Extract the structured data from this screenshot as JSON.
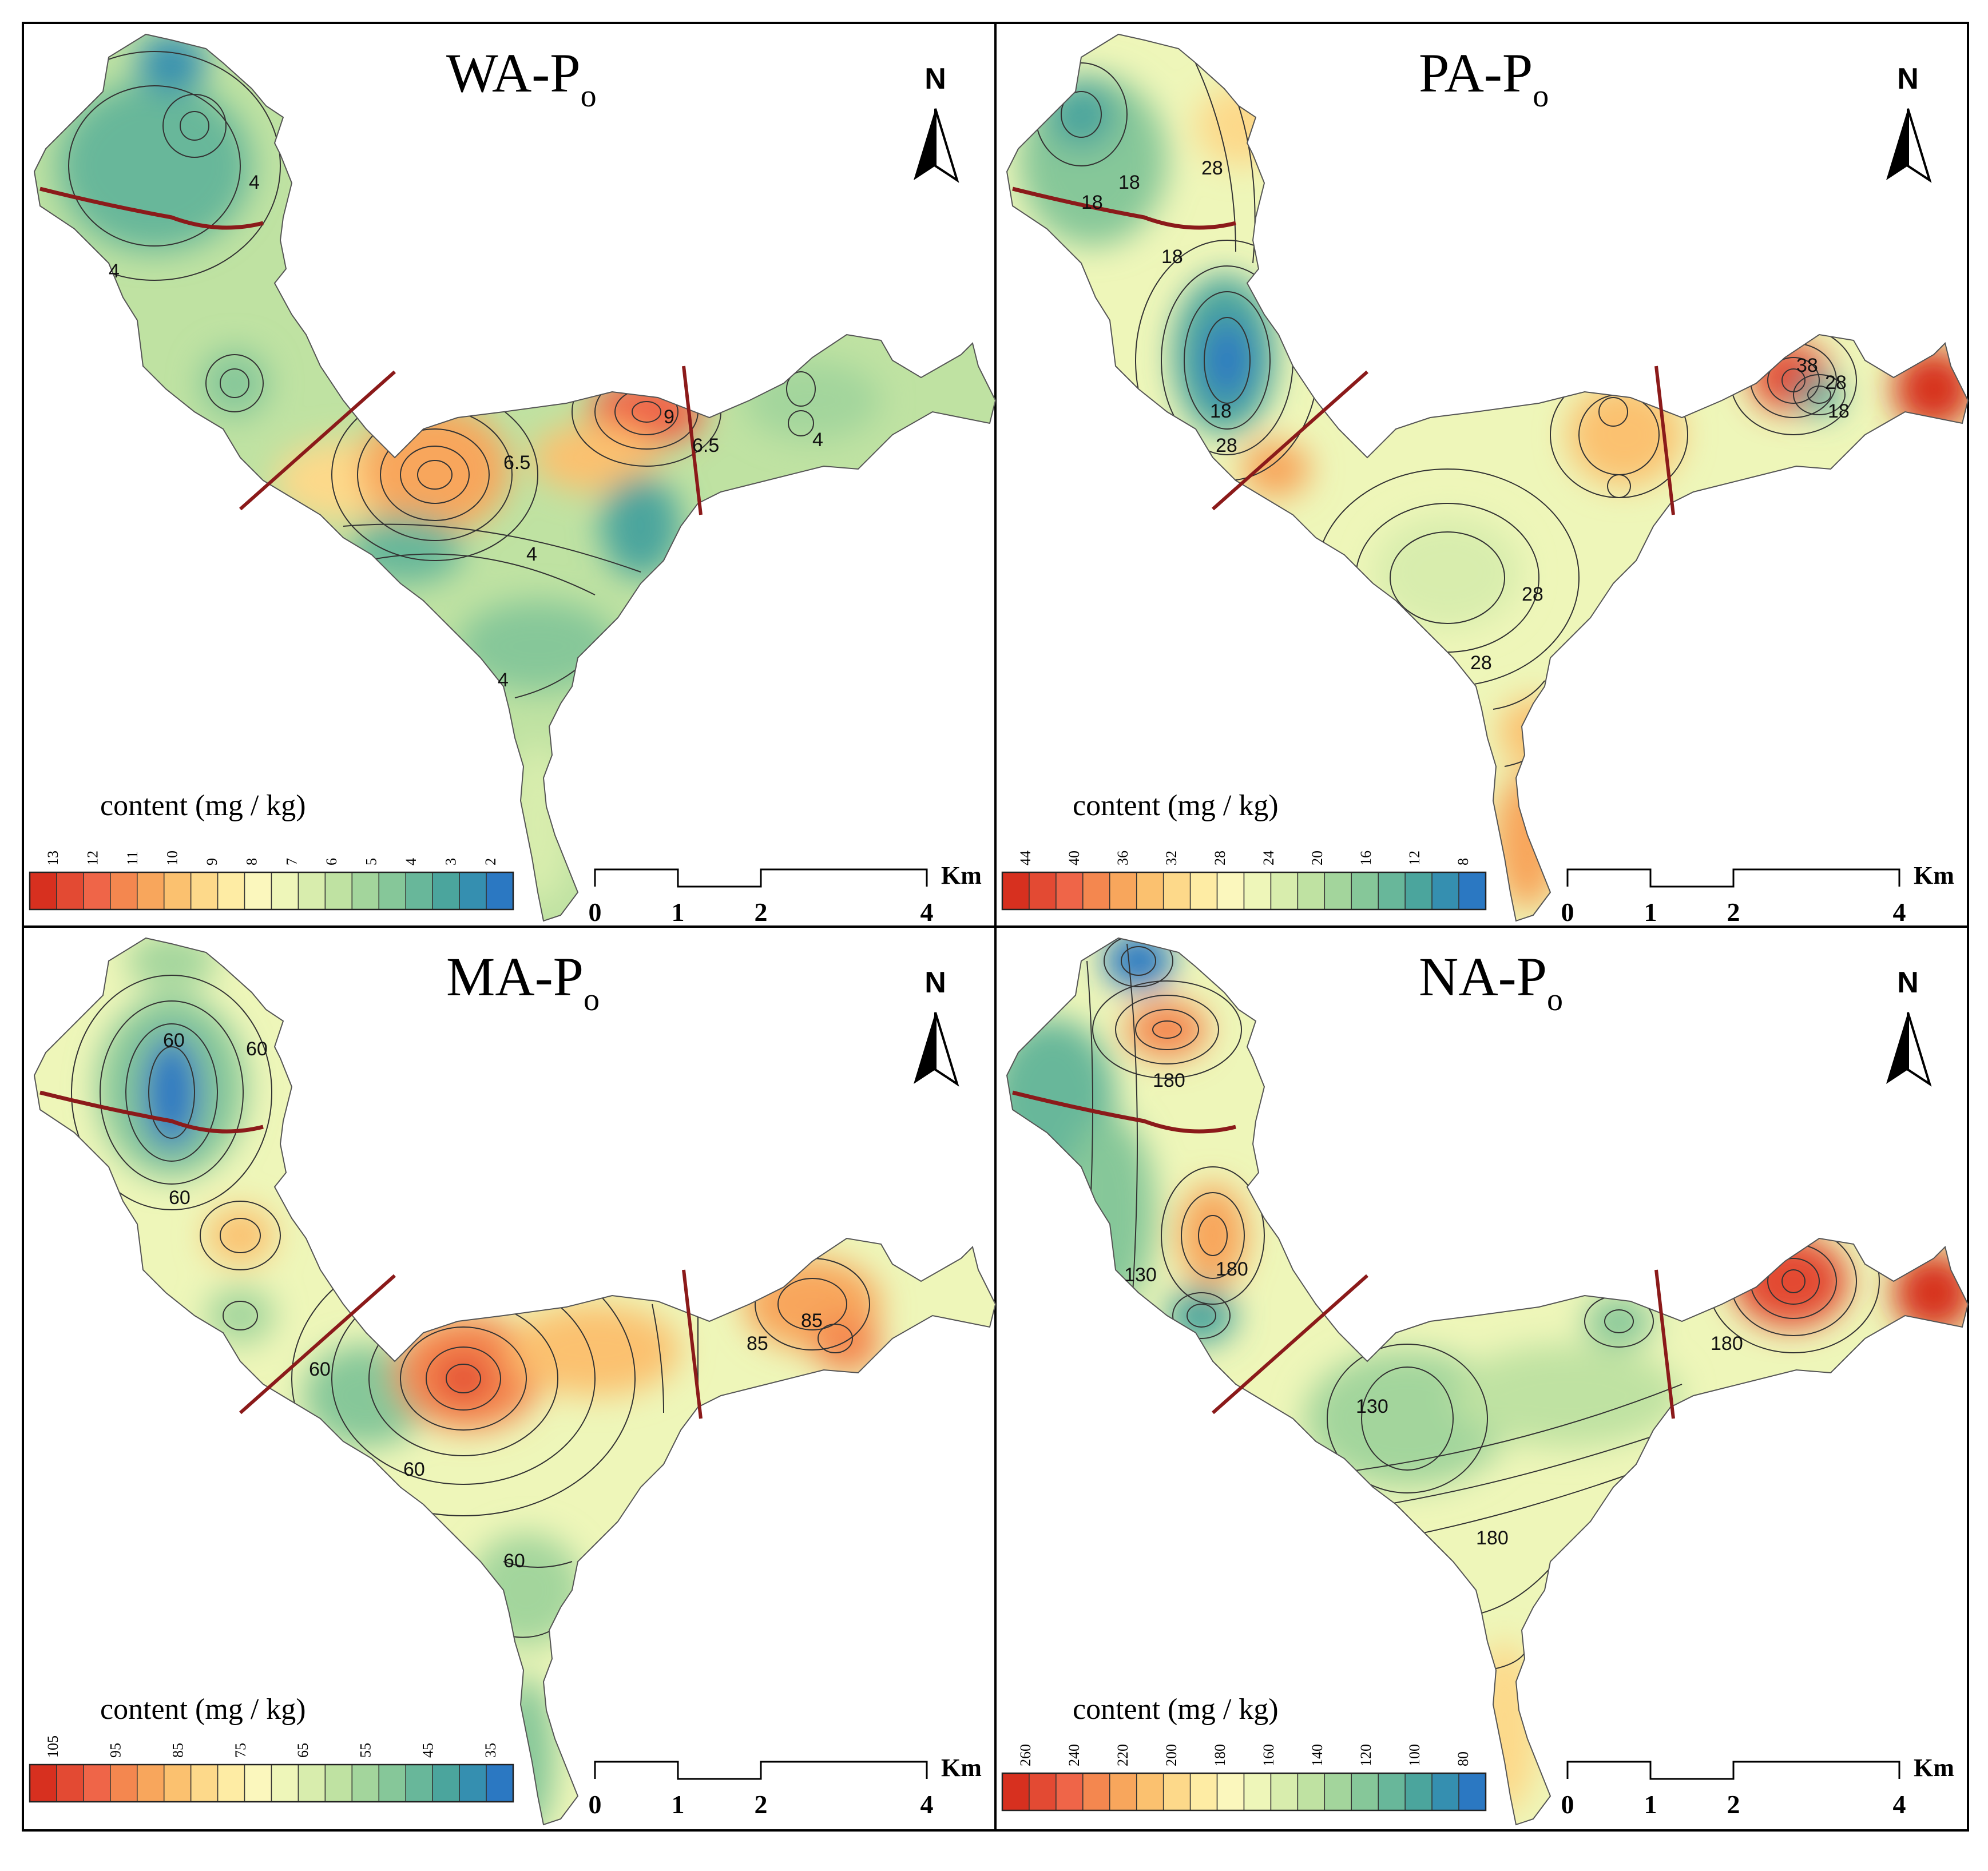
{
  "figure": {
    "panels": [
      {
        "id": "wa",
        "title_main": "WA-P",
        "title_sub": "o",
        "north_label": "N",
        "legend_title": "content (mg / kg)",
        "legend_ticks": [
          "13",
          "12",
          "11",
          "10",
          "9",
          "8",
          "7",
          "6",
          "5",
          "4",
          "3",
          "2"
        ],
        "contour_labels": [
          "4",
          "4",
          "6.5",
          "4",
          "4",
          "9",
          "6.5",
          "4"
        ],
        "scale_unit": "Km",
        "scale_ticks": [
          "0",
          "1",
          "2",
          "4"
        ]
      },
      {
        "id": "pa",
        "title_main": "PA-P",
        "title_sub": "o",
        "north_label": "N",
        "legend_title": "content (mg / kg)",
        "legend_ticks": [
          "44",
          "40",
          "36",
          "32",
          "28",
          "24",
          "20",
          "16",
          "12",
          "8"
        ],
        "contour_labels": [
          "18",
          "18",
          "28",
          "18",
          "18",
          "28",
          "28",
          "28",
          "38",
          "28",
          "18"
        ],
        "scale_unit": "Km",
        "scale_ticks": [
          "0",
          "1",
          "2",
          "4"
        ]
      },
      {
        "id": "ma",
        "title_main": "MA-P",
        "title_sub": "o",
        "north_label": "N",
        "legend_title": "content (mg / kg)",
        "legend_ticks": [
          "105",
          "95",
          "85",
          "75",
          "65",
          "55",
          "45",
          "35"
        ],
        "contour_labels": [
          "60",
          "60",
          "60",
          "60",
          "60",
          "60",
          "85",
          "85"
        ],
        "scale_unit": "Km",
        "scale_ticks": [
          "0",
          "1",
          "2",
          "4"
        ]
      },
      {
        "id": "na",
        "title_main": "NA-P",
        "title_sub": "o",
        "north_label": "N",
        "legend_title": "content (mg / kg)",
        "legend_ticks": [
          "260",
          "240",
          "220",
          "200",
          "180",
          "160",
          "140",
          "120",
          "100",
          "80"
        ],
        "contour_labels": [
          "180",
          "130",
          "180",
          "130",
          "180",
          "180"
        ],
        "scale_unit": "Km",
        "scale_ticks": [
          "0",
          "1",
          "2",
          "4"
        ]
      }
    ],
    "colors": {
      "ramp": [
        "#d7301f",
        "#e34a33",
        "#ef6548",
        "#f4874f",
        "#f8a65c",
        "#fbc16f",
        "#fdd98a",
        "#feeca4",
        "#fbf7bd",
        "#eef6b9",
        "#d8edad",
        "#bfe2a2",
        "#a3d59c",
        "#86c799",
        "#68b79a",
        "#4ba59d",
        "#358fb0",
        "#2b78c2"
      ],
      "boundary": "#8b1a1a",
      "contour": "#333333",
      "frame": "#000000"
    }
  }
}
